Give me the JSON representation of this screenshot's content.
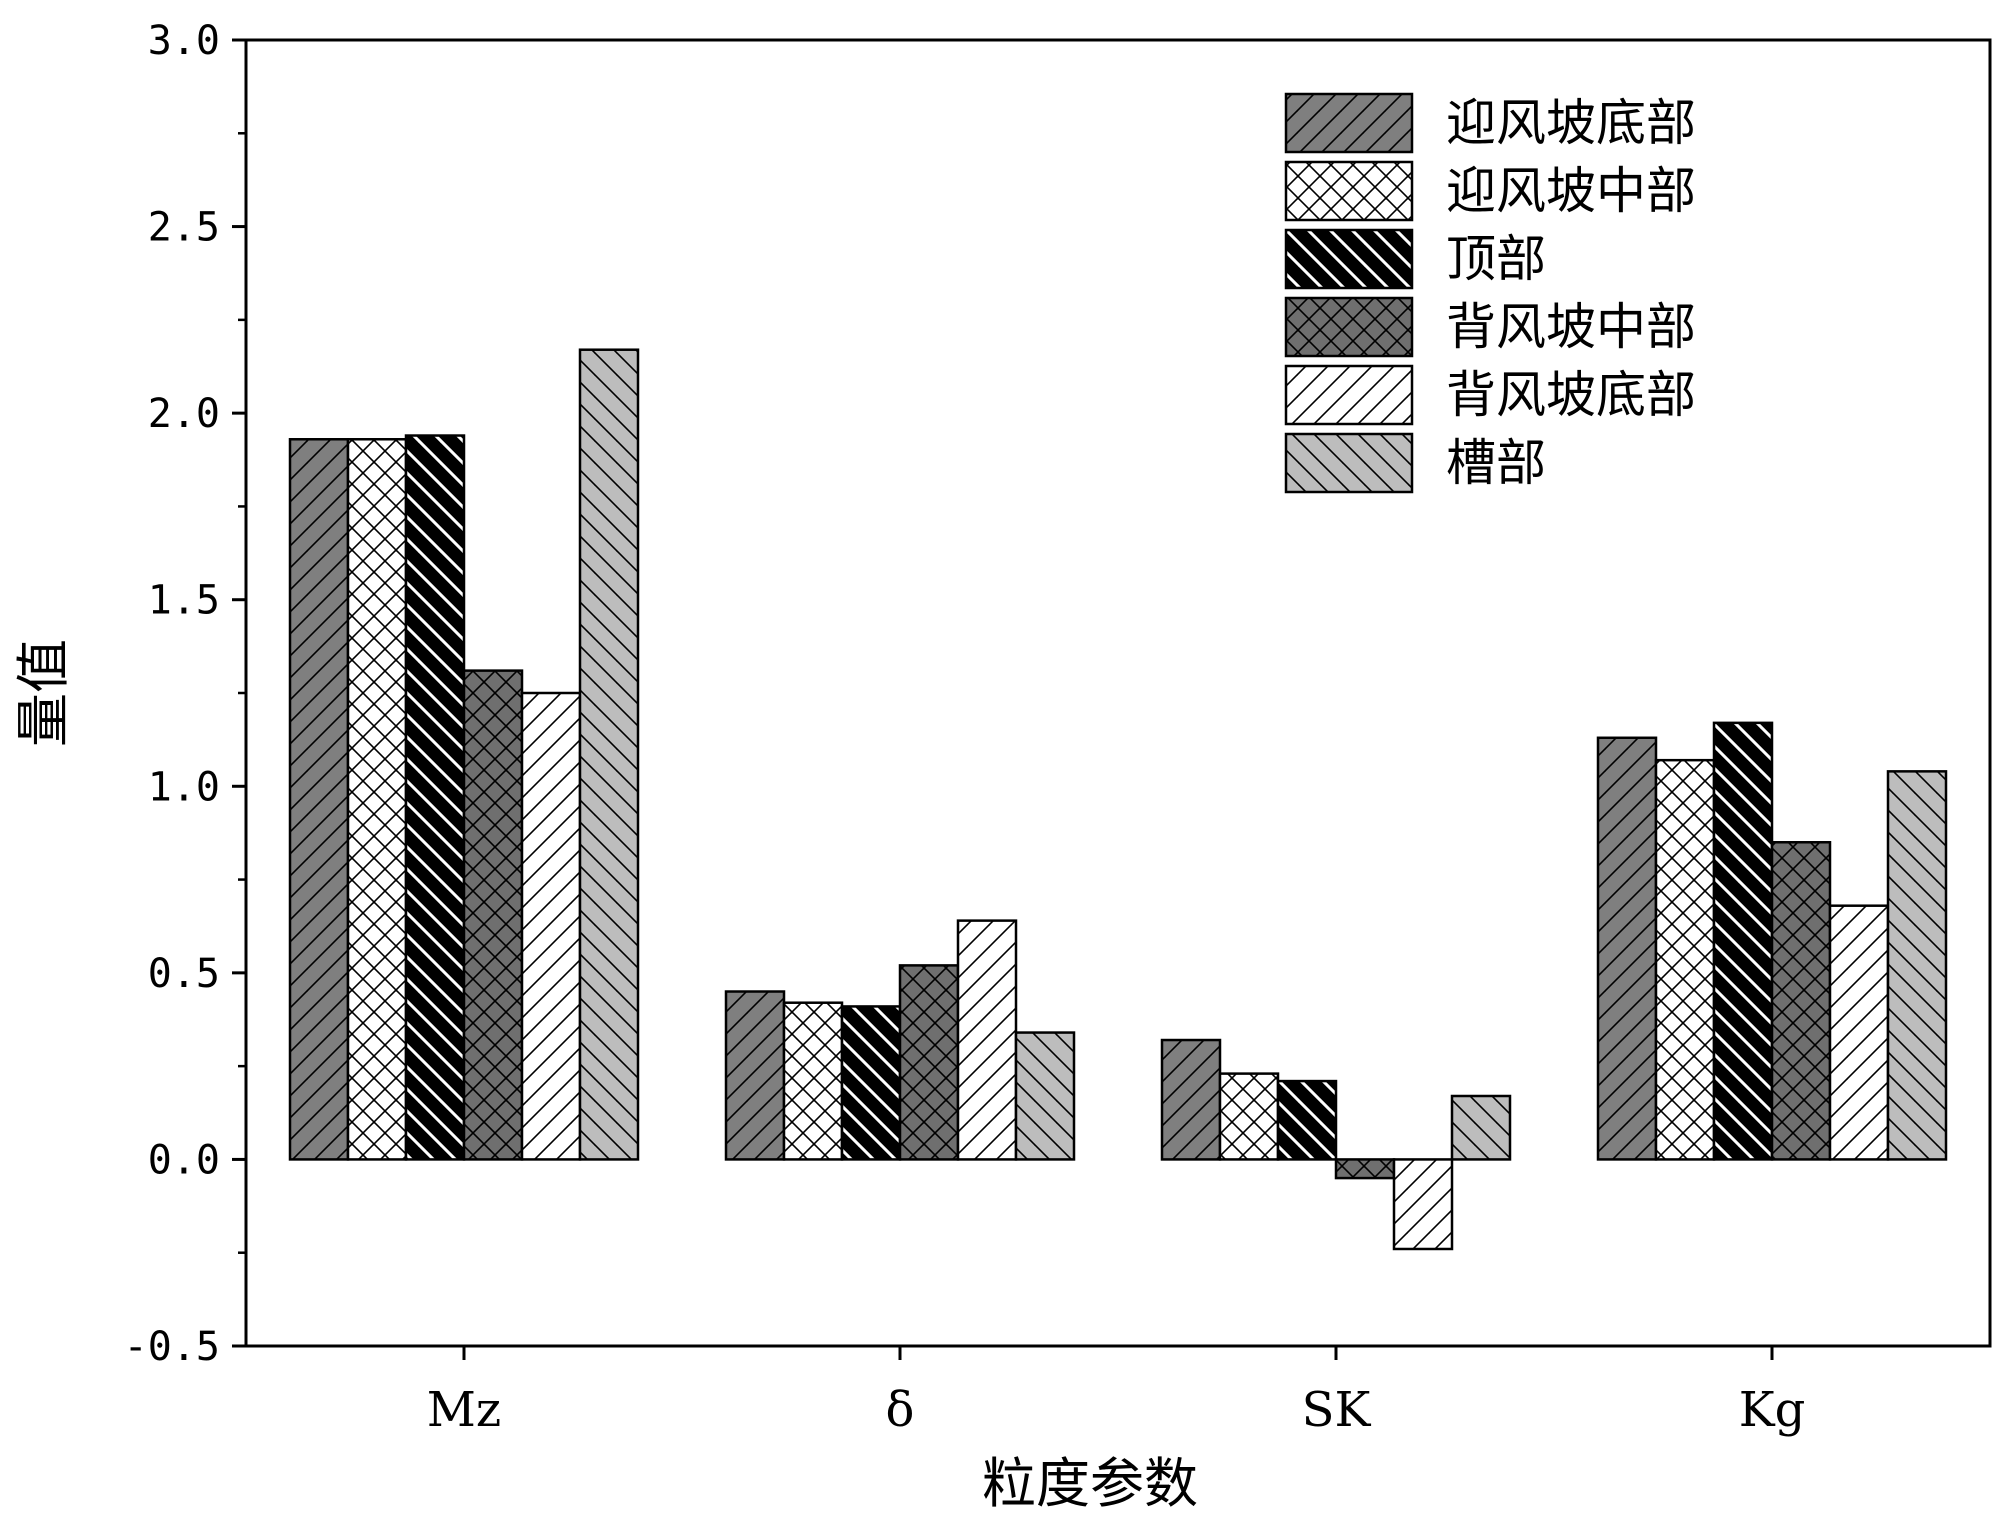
{
  "chart_data": {
    "type": "bar",
    "title": "",
    "xlabel": "粒度参数",
    "ylabel": "量值",
    "categories": [
      "Mz",
      "δ",
      "SK",
      "Kg"
    ],
    "ylim": [
      -0.5,
      3.0
    ],
    "yticks": [
      "3.0",
      "2.5",
      "2.0",
      "1.5",
      "1.0",
      "0.5",
      "0.0",
      "-0.5"
    ],
    "legend_position": "top-right",
    "grid": false,
    "series": [
      {
        "name": "迎风坡底部",
        "values": [
          1.93,
          0.45,
          0.32,
          1.13
        ],
        "fill": "#7f7f7f",
        "pattern": "diag-right"
      },
      {
        "name": "迎风坡中部",
        "values": [
          1.93,
          0.42,
          0.23,
          1.07
        ],
        "fill": "#ffffff",
        "pattern": "cross"
      },
      {
        "name": "顶部",
        "values": [
          1.94,
          0.41,
          0.21,
          1.17
        ],
        "fill": "#000000",
        "pattern": "diag-left"
      },
      {
        "name": "背风坡中部",
        "values": [
          1.31,
          0.52,
          -0.05,
          0.85
        ],
        "fill": "#6f6f6f",
        "pattern": "cross"
      },
      {
        "name": "背风坡底部",
        "values": [
          1.25,
          0.64,
          -0.24,
          0.68
        ],
        "fill": "#ffffff",
        "pattern": "diag-right"
      },
      {
        "name": "槽部",
        "values": [
          2.17,
          0.34,
          0.17,
          1.04
        ],
        "fill": "#bdbdbd",
        "pattern": "diag-left"
      }
    ]
  }
}
